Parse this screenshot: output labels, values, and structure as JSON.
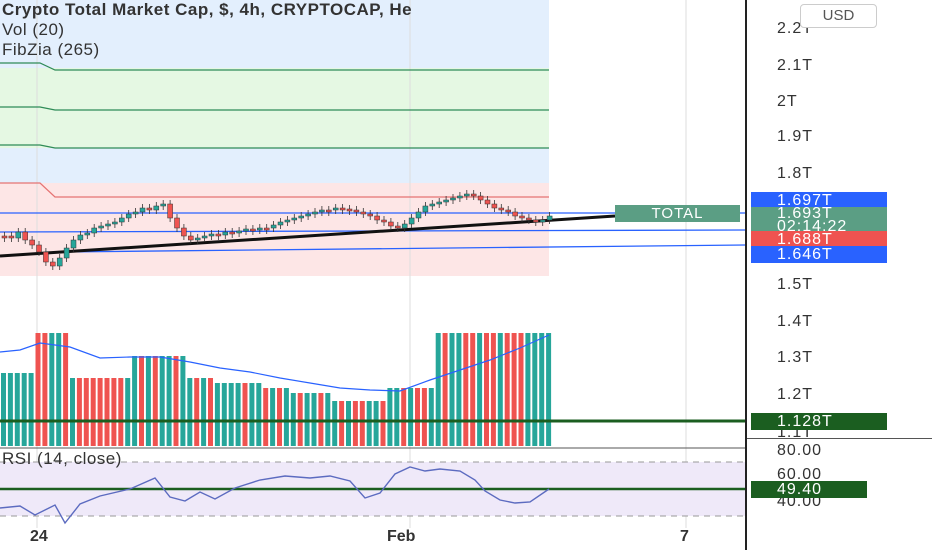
{
  "legend": {
    "title": "Crypto Total Market Cap, $, 4h, CRYPTOCAP, He",
    "volume": "Vol (20)",
    "fibzia": "FibZia (265)",
    "rsi": "RSI (14, close)"
  },
  "toolbar": {
    "currency_button": "USD"
  },
  "price_axis": {
    "labels": [
      "2.2T",
      "2.1T",
      "2T",
      "1.9T",
      "1.8T",
      "1.5T",
      "1.4T",
      "1.3T",
      "1.2T",
      "1.1T"
    ],
    "tags": {
      "upper_line": "1.697T",
      "last_price": "1.693T",
      "countdown": "02:14:22",
      "lower_line": "1.688T",
      "support_line": "1.646T",
      "volume_level": "1.128T"
    }
  },
  "rsi_axis": {
    "labels": [
      "80.00",
      "60.00",
      "40.00"
    ],
    "current": "49.40"
  },
  "time_axis": {
    "labels": [
      "24",
      "Feb",
      "7"
    ]
  },
  "symbol_label": "TOTAL",
  "colors": {
    "up": "#26a69a",
    "down": "#ef5350",
    "blue_line": "#2962ff",
    "green_tag": "#1b5e20",
    "total_tag": "#5b9e84"
  }
}
